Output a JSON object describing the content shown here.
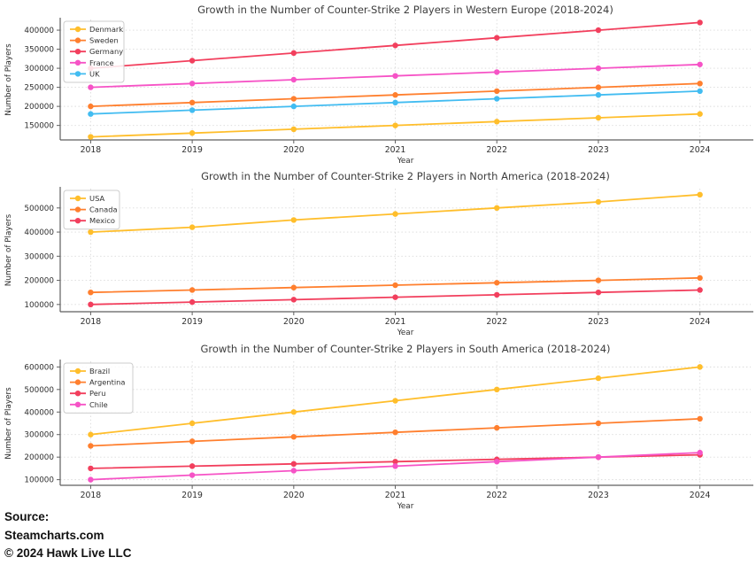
{
  "figure": {
    "kind": "matplotlib-style multi-line figure",
    "background": "#ffffff",
    "grid_color": "#dadada",
    "spine_color": "#5f5f5f",
    "title_color": "#3d3d3d",
    "tick_label_color": "#2e2e2e"
  },
  "palette": {
    "gold": "#FFBE2B",
    "orange": "#FF7F2E",
    "crimson": "#F23F5D",
    "magenta": "#F653C6",
    "skyblue": "#42BCF1"
  },
  "chart_data": [
    {
      "type": "line",
      "title": "Growth in the Number of Counter-Strike 2 Players in Western Europe (2018-2024)",
      "xlabel": "Year",
      "ylabel": "Number of Players",
      "x": [
        2018,
        2019,
        2020,
        2021,
        2022,
        2023,
        2024
      ],
      "xticklabels": [
        "2018",
        "2019",
        "2020",
        "2021",
        "2022",
        "2023",
        "2024"
      ],
      "series": [
        {
          "name": "Denmark",
          "color": "#FFBE2B",
          "values": [
            120000,
            130000,
            140000,
            150000,
            160000,
            170000,
            180000
          ]
        },
        {
          "name": "Sweden",
          "color": "#FF7F2E",
          "values": [
            200000,
            210000,
            220000,
            230000,
            240000,
            250000,
            260000
          ]
        },
        {
          "name": "Germany",
          "color": "#F23F5D",
          "values": [
            300000,
            320000,
            340000,
            360000,
            380000,
            400000,
            420000
          ]
        },
        {
          "name": "France",
          "color": "#F653C6",
          "values": [
            250000,
            260000,
            270000,
            280000,
            290000,
            300000,
            310000
          ]
        },
        {
          "name": "UK",
          "color": "#42BCF1",
          "values": [
            180000,
            190000,
            200000,
            210000,
            220000,
            230000,
            240000
          ]
        }
      ],
      "yticks": [
        150000,
        200000,
        250000,
        300000,
        350000,
        400000
      ],
      "ylim": [
        112000,
        428000
      ],
      "xlim": [
        2017.7,
        2024.5
      ],
      "grid": true,
      "legend_position": "upper left",
      "markers": "circle"
    },
    {
      "type": "line",
      "title": "Growth in the Number of Counter-Strike 2 Players in North America (2018-2024)",
      "xlabel": "Year",
      "ylabel": "Number of Players",
      "x": [
        2018,
        2019,
        2020,
        2021,
        2022,
        2023,
        2024
      ],
      "xticklabels": [
        "2018",
        "2019",
        "2020",
        "2021",
        "2022",
        "2023",
        "2024"
      ],
      "series": [
        {
          "name": "USA",
          "color": "#FFBE2B",
          "values": [
            400000,
            420000,
            450000,
            475000,
            500000,
            525000,
            555000
          ]
        },
        {
          "name": "Canada",
          "color": "#FF7F2E",
          "values": [
            150000,
            160000,
            170000,
            180000,
            190000,
            200000,
            210000
          ]
        },
        {
          "name": "Mexico",
          "color": "#F23F5D",
          "values": [
            100000,
            110000,
            120000,
            130000,
            140000,
            150000,
            160000
          ]
        }
      ],
      "yticks": [
        100000,
        200000,
        300000,
        400000,
        500000
      ],
      "ylim": [
        70000,
        580000
      ],
      "xlim": [
        2017.7,
        2024.5
      ],
      "grid": true,
      "legend_position": "upper left",
      "markers": "circle"
    },
    {
      "type": "line",
      "title": "Growth in the Number of Counter-Strike 2 Players in South America (2018-2024)",
      "xlabel": "Year",
      "ylabel": "Number of Players",
      "x": [
        2018,
        2019,
        2020,
        2021,
        2022,
        2023,
        2024
      ],
      "xticklabels": [
        "2018",
        "2019",
        "2020",
        "2021",
        "2022",
        "2023",
        "2024"
      ],
      "series": [
        {
          "name": "Brazil",
          "color": "#FFBE2B",
          "values": [
            300000,
            350000,
            400000,
            450000,
            500000,
            550000,
            600000
          ]
        },
        {
          "name": "Argentina",
          "color": "#FF7F2E",
          "values": [
            250000,
            270000,
            290000,
            310000,
            330000,
            350000,
            370000
          ]
        },
        {
          "name": "Peru",
          "color": "#F23F5D",
          "values": [
            150000,
            160000,
            170000,
            180000,
            190000,
            200000,
            210000
          ]
        },
        {
          "name": "Chile",
          "color": "#F653C6",
          "values": [
            100000,
            120000,
            140000,
            160000,
            180000,
            200000,
            220000
          ]
        }
      ],
      "yticks": [
        100000,
        200000,
        300000,
        400000,
        500000,
        600000
      ],
      "ylim": [
        75000,
        625000
      ],
      "xlim": [
        2017.7,
        2024.5
      ],
      "grid": true,
      "legend_position": "upper left",
      "markers": "circle"
    }
  ],
  "footer": {
    "source_label": "Source:",
    "source_name": "Steamcharts.com",
    "copyright": "© 2024 Hawk Live LLC"
  }
}
